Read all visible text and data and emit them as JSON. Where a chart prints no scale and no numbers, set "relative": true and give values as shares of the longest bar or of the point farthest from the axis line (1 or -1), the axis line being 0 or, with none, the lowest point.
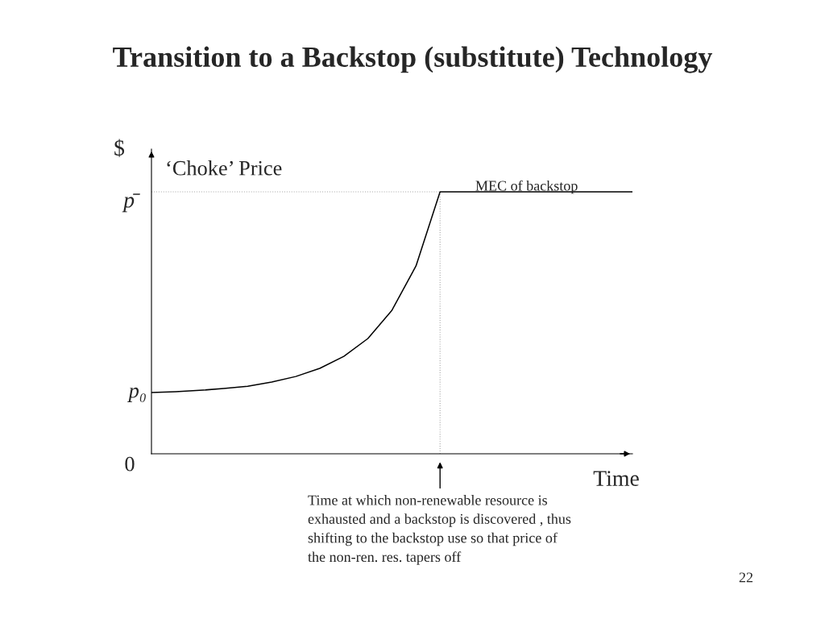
{
  "chart_data": {
    "type": "line",
    "title": "Transition to a Backstop (substitute) Technology",
    "ylabel": "$",
    "xlabel": "Time",
    "relative": true,
    "categories": [
      null,
      null,
      null,
      null,
      null,
      null,
      null,
      null,
      null,
      null,
      null,
      null,
      null,
      null,
      null,
      null,
      null,
      null,
      null,
      null,
      null
    ],
    "series": [
      {
        "color": "#000000",
        "values": [
          0.234,
          0.237,
          0.242,
          0.249,
          0.258,
          0.274,
          0.295,
          0.326,
          0.372,
          0.44,
          0.548,
          0.717,
          1,
          1,
          1,
          1,
          1,
          1,
          1,
          1,
          1
        ]
      }
    ],
    "annotations": [
      "p₀",
      "0",
      "‘Choke’ Price",
      "MEC of backstop",
      "Time at which non-renewable resource is exhausted and a backstop is discovered , thus shifting to the backstop use so that price of the non-ren. res. tapers off",
      "22",
      "p̄"
    ],
    "marker": "none",
    "line_style": "solid"
  }
}
